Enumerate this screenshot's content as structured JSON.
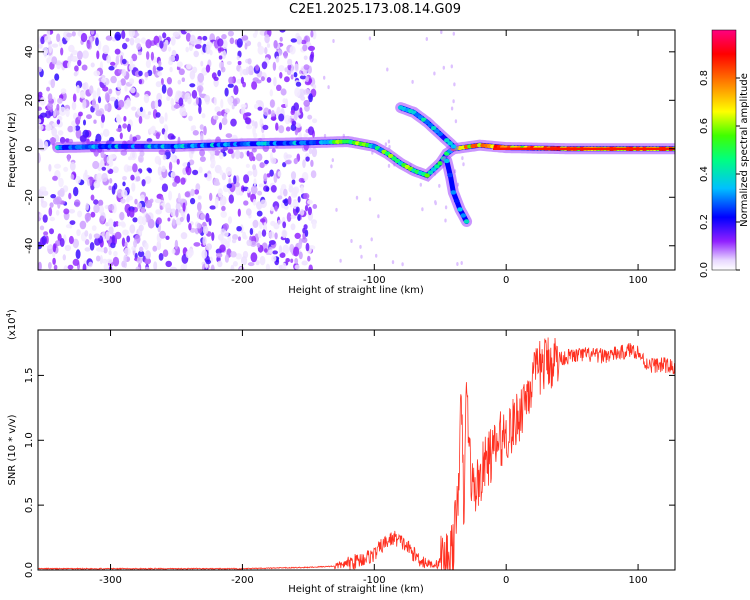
{
  "title": "C2E1.2025.173.08.14.G09",
  "chart_data": [
    {
      "type": "heatmap",
      "xlabel": "Height of straight line (km)",
      "ylabel": "Frequency (Hz)",
      "xlim": [
        -355,
        128
      ],
      "ylim": [
        -50,
        49
      ],
      "x_ticks": [
        -300,
        -200,
        -100,
        0,
        100
      ],
      "x_tick_labels": [
        "-300",
        "-200",
        "-100",
        "0",
        "100"
      ],
      "y_ticks": [
        -40,
        -20,
        0,
        20,
        40
      ],
      "y_tick_labels": [
        "-40",
        "-20",
        "0",
        "20",
        "40"
      ],
      "colorbar": {
        "label": "Normalized spectral amplitude",
        "range": [
          0,
          1
        ],
        "ticks": [
          0.0,
          0.2,
          0.4,
          0.6,
          0.8
        ],
        "tick_labels": [
          "0.0",
          "0.2",
          "0.4",
          "0.6",
          "0.8"
        ]
      },
      "ridges": [
        {
          "points": [
            [
              -340,
              0.5
            ],
            [
              -300,
              1
            ],
            [
              -250,
              1
            ],
            [
              -200,
              2
            ],
            [
              -150,
              2.5
            ],
            [
              -120,
              3
            ],
            [
              -100,
              1
            ],
            [
              -90,
              -2
            ],
            [
              -80,
              -6
            ],
            [
              -70,
              -9
            ],
            [
              -60,
              -11
            ],
            [
              -50,
              -6
            ],
            [
              -45,
              -2
            ],
            [
              -40,
              0
            ],
            [
              -20,
              1.5
            ],
            [
              0,
              0.5
            ],
            [
              50,
              0
            ],
            [
              128,
              0
            ]
          ],
          "amp": 0.6
        },
        {
          "points": [
            [
              -80,
              17
            ],
            [
              -70,
              15
            ],
            [
              -60,
              11
            ],
            [
              -50,
              6
            ],
            [
              -40,
              1
            ]
          ],
          "amp": 0.3
        },
        {
          "points": [
            [
              -45,
              -5
            ],
            [
              -42,
              -12
            ],
            [
              -40,
              -18
            ],
            [
              -35,
              -25
            ],
            [
              -30,
              -30
            ]
          ],
          "amp": 0.3
        }
      ],
      "noise_region_x": [
        -355,
        -145
      ],
      "grid": false
    },
    {
      "type": "line",
      "xlabel": "Height of straight line (km)",
      "ylabel": "SNR (10 * v/v)",
      "y_multiplier": "(x10",
      "y_multiplier_exp": "4",
      "y_multiplier_close": ")",
      "xlim": [
        -355,
        128
      ],
      "ylim": [
        0,
        1.85
      ],
      "x_ticks": [
        -300,
        -200,
        -100,
        0,
        100
      ],
      "x_tick_labels": [
        "-300",
        "-200",
        "-100",
        "0",
        "100"
      ],
      "y_ticks": [
        0.0,
        0.5,
        1.0,
        1.5
      ],
      "y_tick_labels": [
        "0.0",
        "0.5",
        "1.0",
        "1.5"
      ],
      "series": [
        {
          "color": "#ff3020",
          "x": [
            -355,
            -300,
            -250,
            -200,
            -150,
            -130,
            -120,
            -110,
            -100,
            -95,
            -90,
            -85,
            -80,
            -75,
            -70,
            -65,
            -60,
            -55,
            -50,
            -45,
            -40,
            -37,
            -34,
            -32,
            -30,
            -28,
            -25,
            -20,
            -15,
            -10,
            -5,
            0,
            5,
            10,
            15,
            20,
            25,
            30,
            40,
            50,
            60,
            70,
            80,
            90,
            95,
            100,
            105,
            110,
            120,
            128
          ],
          "y": [
            0.01,
            0.01,
            0.01,
            0.01,
            0.02,
            0.03,
            0.05,
            0.08,
            0.12,
            0.18,
            0.22,
            0.25,
            0.22,
            0.18,
            0.12,
            0.08,
            0.05,
            0.04,
            0.06,
            0.1,
            0.2,
            0.5,
            1.3,
            0.4,
            1.5,
            0.9,
            0.6,
            0.7,
            0.85,
            0.9,
            1.0,
            1.05,
            1.1,
            1.2,
            1.35,
            1.45,
            1.55,
            1.6,
            1.63,
            1.65,
            1.66,
            1.65,
            1.66,
            1.68,
            1.7,
            1.68,
            1.6,
            1.58,
            1.58,
            1.56
          ]
        }
      ],
      "grid": false
    }
  ]
}
